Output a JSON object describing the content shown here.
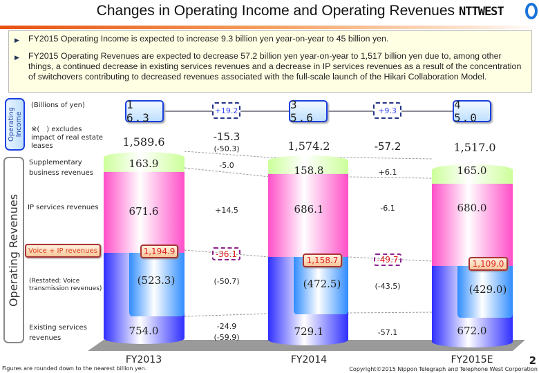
{
  "header": {
    "title": "Changes in Operating Income and Operating Revenues",
    "logo_text": "NTTWEST"
  },
  "summary": {
    "bullets": [
      "FY2015 Operating Income is expected to increase 9.3 billion yen year-on-year to 45 billion yen.",
      "FY2015 Operating Revenues are expected to decrease 57.2 billion yen year-on-year to 1,517 billion yen due to, among other things, a continued decrease in existing services revenues and a decrease in IP services revenues as a result of the concentration of switchovers contributing to decreased revenues associated with the full-scale launch of the Hikari Collaboration Model."
    ]
  },
  "labels": {
    "operating_income": "Operating Income",
    "operating_revenues": "Operating Revenues",
    "unit": "(Billions of yen)",
    "note": "※(　) excludes impact of real estate leases",
    "supplementary": "Supplementary business revenues",
    "ip": "IP services revenues",
    "voice_ip": "Voice + IP revenues",
    "voice": "(Restated: Voice transmission revenues)",
    "existing": "Existing services revenues"
  },
  "footer": {
    "note": "Figures are rounded down to the nearest billion yen.",
    "copyright": "Copyright©2015 Nippon Telegraph and Telephone West Corporation",
    "page": "2"
  },
  "colors": {
    "supplementary": "#ccff99",
    "ip": "#ff4fc8",
    "existing": "#2f2fff",
    "voice": "#2f8cff",
    "income_box": "#1a3fe0"
  },
  "chart_data": {
    "type": "stacked-bar",
    "categories": [
      "FY2013",
      "FY2014",
      "FY2015E"
    ],
    "operating_income": [
      "1 6.3",
      "3 5.6",
      "4 5.0"
    ],
    "operating_income_change": [
      "+19.2",
      "+9.3"
    ],
    "totals": [
      "1,589.6",
      "1,574.2",
      "1,517.0"
    ],
    "series": [
      {
        "name": "Existing services revenues",
        "values": [
          754.0,
          729.1,
          672.0
        ],
        "labels": [
          "754.0",
          "729.1",
          "672.0"
        ]
      },
      {
        "name": "IP services revenues",
        "values": [
          671.6,
          686.1,
          680.0
        ],
        "labels": [
          "671.6",
          "686.1",
          "680.0"
        ]
      },
      {
        "name": "Supplementary business revenues",
        "values": [
          163.9,
          158.8,
          165.0
        ],
        "labels": [
          "163.9",
          "158.8",
          "165.0"
        ]
      }
    ],
    "voice_ip": [
      "1,194.9",
      "1,158.7",
      "1,109.0"
    ],
    "voice": {
      "values": [
        523.3,
        472.5,
        429.0
      ],
      "labels": [
        "(523.3)",
        "(472.5)",
        "(429.0)"
      ]
    },
    "changes": [
      {
        "total": "-15.3",
        "total_excl": "(-50.3)",
        "supplementary": "-5.0",
        "ip": "+14.5",
        "voice_ip": "-36.1",
        "voice": "(-50.7)",
        "existing": "-24.9",
        "existing_excl": "(-59.9)"
      },
      {
        "total": "-57.2",
        "supplementary": "+6.1",
        "ip": "-6.1",
        "voice_ip": "-49.7",
        "voice": "(-43.5)",
        "existing": "-57.1"
      }
    ]
  }
}
